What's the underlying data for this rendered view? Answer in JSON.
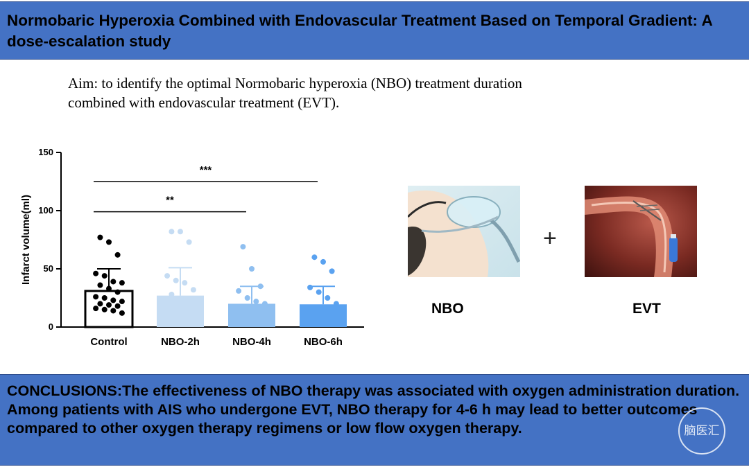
{
  "title": "Normobaric Hyperoxia Combined with Endovascular Treatment Based on Temporal Gradient: A dose-escalation study",
  "aim": "Aim: to identify the optimal Normobaric hyperoxia (NBO) treatment duration combined with endovascular treatment (EVT).",
  "images": {
    "nbo_label": "NBO",
    "evt_label": "EVT",
    "plus": "+"
  },
  "conclusion": "CONCLUSIONS:The effectiveness of NBO therapy was associated with oxygen administration duration. Among patients with AIS who undergone EVT, NBO therapy for 4-6 h may lead to better outcomes compared to other oxygen therapy regimens or low flow oxygen therapy.",
  "watermark": "脑医汇",
  "colors": {
    "banner": "#4472c4",
    "control": "#000000",
    "nbo2h": "#c5dcf3",
    "nbo4h": "#8fbff0",
    "nbo6h": "#5aa2f0"
  },
  "chart_data": {
    "type": "bar",
    "ylabel": "Infarct volume(ml)",
    "xlabel": "",
    "ylim": [
      0,
      150
    ],
    "yticks": [
      0,
      50,
      100,
      150
    ],
    "categories": [
      "Control",
      "NBO-2h",
      "NBO-4h",
      "NBO-6h"
    ],
    "values": [
      31,
      27,
      20,
      19.5
    ],
    "sd_upper": [
      50,
      51,
      35,
      35
    ],
    "bar_colors": [
      "#ffffff",
      "#c5dcf3",
      "#8fbff0",
      "#5aa2f0"
    ],
    "dot_colors": [
      "#000000",
      "#c5dcf3",
      "#8fbff0",
      "#5aa2f0"
    ],
    "points": [
      [
        77,
        73,
        62,
        46,
        44,
        39,
        38,
        36,
        33,
        30,
        26,
        25,
        23,
        22,
        20,
        19,
        18,
        16,
        15,
        14,
        12
      ],
      [
        82,
        82,
        73,
        44,
        40,
        38,
        32,
        28
      ],
      [
        69,
        50,
        35,
        31,
        25,
        22,
        20
      ],
      [
        60,
        56,
        48,
        34,
        30,
        25,
        20
      ]
    ],
    "significance": [
      {
        "from": "Control",
        "to": "NBO-6h",
        "label": "***",
        "y": 125
      },
      {
        "from": "Control",
        "to": "NBO-4h",
        "label": "**",
        "y": 99
      }
    ]
  }
}
